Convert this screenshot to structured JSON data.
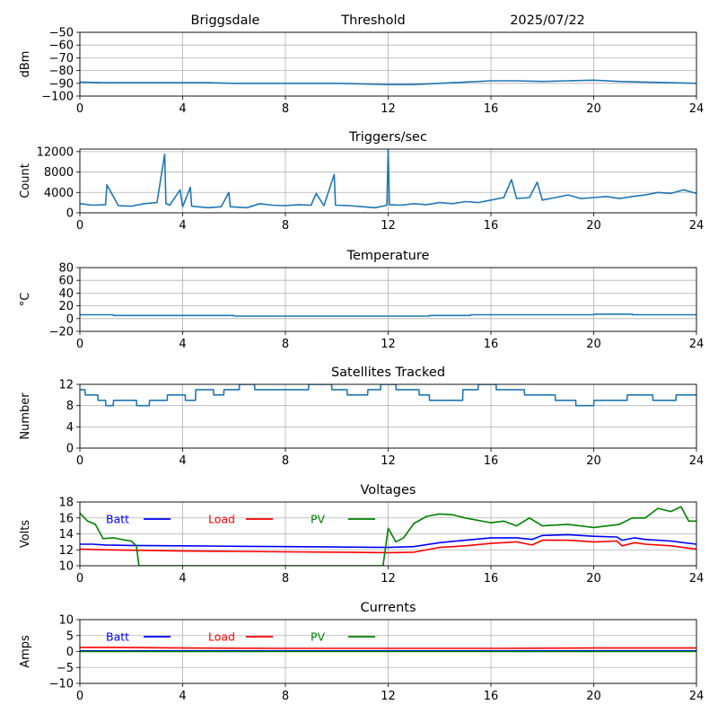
{
  "header": {
    "station": "Briggsdale",
    "mode": "Threshold",
    "date": "2025/07/22"
  },
  "chart_data": [
    {
      "id": "signal",
      "type": "line",
      "title": "",
      "xlabel": "",
      "ylabel": "dBm",
      "xlim": [
        0,
        24
      ],
      "ylim": [
        -100,
        -50
      ],
      "xticks": [
        "0",
        "4",
        "8",
        "12",
        "16",
        "20",
        "24"
      ],
      "yticks": [
        "−100",
        "−90",
        "−80",
        "−70",
        "−60",
        "−50"
      ],
      "grid": true,
      "series": [
        {
          "color": "#1f77b4",
          "x": [
            0,
            1,
            2,
            3,
            4,
            5,
            6,
            7,
            8,
            9,
            10,
            11,
            12,
            13,
            14,
            15,
            16,
            17,
            18,
            19,
            20,
            21,
            22,
            23,
            24
          ],
          "y": [
            -89,
            -89.5,
            -89.5,
            -89.5,
            -89.5,
            -89.5,
            -90,
            -90,
            -90,
            -90,
            -90,
            -90.5,
            -91,
            -91,
            -90,
            -89,
            -88,
            -88,
            -88.5,
            -88,
            -87.5,
            -88.5,
            -89,
            -89.5,
            -90
          ]
        }
      ]
    },
    {
      "id": "triggers",
      "type": "line",
      "title": "Triggers/sec",
      "xlabel": "",
      "ylabel": "Count",
      "xlim": [
        0,
        24
      ],
      "ylim": [
        0,
        12500
      ],
      "xticks": [
        "0",
        "4",
        "8",
        "12",
        "16",
        "20",
        "24"
      ],
      "yticks": [
        "0",
        "4000",
        "8000",
        "12000"
      ],
      "grid": true,
      "series": [
        {
          "color": "#1f77b4",
          "x": [
            0,
            0.5,
            1,
            1.05,
            1.5,
            2,
            2.5,
            3,
            3.3,
            3.35,
            3.5,
            3.9,
            4,
            4.3,
            4.35,
            5,
            5.5,
            5.8,
            5.85,
            6.5,
            7,
            7.5,
            8,
            8.5,
            9,
            9.2,
            9.5,
            9.9,
            9.95,
            10.5,
            11,
            11.5,
            11.95,
            12,
            12.05,
            12.5,
            13,
            13.5,
            14,
            14.5,
            15,
            15.5,
            16,
            16.5,
            16.8,
            17,
            17.5,
            17.8,
            18,
            18.5,
            19,
            19.5,
            20,
            20.5,
            21,
            21.5,
            22,
            22.5,
            23,
            23.5,
            24
          ],
          "y": [
            1800,
            1500,
            1600,
            5500,
            1400,
            1300,
            1800,
            2000,
            11500,
            1800,
            1500,
            4500,
            1200,
            5000,
            1300,
            1000,
            1200,
            4000,
            1200,
            1000,
            1800,
            1500,
            1400,
            1600,
            1500,
            3800,
            1400,
            7500,
            1500,
            1400,
            1200,
            1000,
            1500,
            12500,
            1600,
            1500,
            1800,
            1600,
            2000,
            1800,
            2200,
            2000,
            2500,
            3000,
            6500,
            2800,
            3000,
            6000,
            2500,
            3000,
            3500,
            2800,
            3000,
            3200,
            2800,
            3200,
            3500,
            4000,
            3800,
            4500,
            3800
          ]
        }
      ]
    },
    {
      "id": "temperature",
      "type": "line",
      "title": "Temperature",
      "xlabel": "",
      "ylabel": "°C",
      "xlim": [
        0,
        24
      ],
      "ylim": [
        -20,
        80
      ],
      "xticks": [
        "0",
        "4",
        "8",
        "12",
        "16",
        "20",
        "24"
      ],
      "yticks": [
        "−20",
        "0",
        "20",
        "40",
        "60",
        "80"
      ],
      "grid": true,
      "series": [
        {
          "color": "#1f77b4",
          "x": [
            0,
            1.3,
            1.31,
            6,
            6.01,
            13.6,
            13.61,
            15.2,
            15.21,
            20,
            20.01,
            21.5,
            21.51,
            24
          ],
          "y": [
            6,
            6,
            5,
            5,
            4,
            4,
            5,
            5,
            6,
            6,
            7,
            7,
            6,
            6
          ]
        }
      ]
    },
    {
      "id": "satellites",
      "type": "line",
      "title": "Satellites Tracked",
      "xlabel": "",
      "ylabel": "Number",
      "xlim": [
        0,
        24
      ],
      "ylim": [
        0,
        12
      ],
      "xticks": [
        "0",
        "4",
        "8",
        "12",
        "16",
        "20",
        "24"
      ],
      "yticks": [
        "0",
        "4",
        "8",
        "12"
      ],
      "grid": true,
      "series": [
        {
          "color": "#1f77b4",
          "x": [
            0,
            0.2,
            0.21,
            0.7,
            0.71,
            1,
            1.01,
            1.3,
            1.31,
            2.2,
            2.21,
            2.7,
            2.71,
            3.4,
            3.41,
            4.1,
            4.11,
            4.5,
            4.51,
            5.2,
            5.21,
            5.6,
            5.61,
            6.2,
            6.21,
            6.8,
            6.81,
            8.9,
            8.91,
            9.8,
            9.81,
            10.4,
            10.41,
            11.2,
            11.21,
            11.7,
            11.71,
            12.3,
            12.31,
            13.2,
            13.21,
            13.6,
            13.61,
            14.9,
            14.91,
            15.5,
            15.51,
            16.2,
            16.21,
            17.3,
            17.31,
            18.5,
            18.51,
            19.3,
            19.31,
            20,
            20.01,
            21.3,
            21.31,
            22.3,
            22.31,
            23.2,
            23.21,
            24
          ],
          "y": [
            11,
            11,
            10,
            10,
            9,
            9,
            8,
            8,
            9,
            9,
            8,
            8,
            9,
            9,
            10,
            10,
            9,
            9,
            11,
            11,
            10,
            10,
            11,
            11,
            12,
            12,
            11,
            11,
            12,
            12,
            11,
            11,
            10,
            10,
            11,
            11,
            12,
            12,
            11,
            11,
            10,
            10,
            9,
            9,
            11,
            11,
            12,
            12,
            11,
            11,
            10,
            10,
            9,
            9,
            8,
            8,
            9,
            9,
            10,
            10,
            9,
            9,
            10,
            10
          ]
        }
      ]
    },
    {
      "id": "voltages",
      "type": "line",
      "title": "Voltages",
      "xlabel": "",
      "ylabel": "Volts",
      "xlim": [
        0,
        24
      ],
      "ylim": [
        10,
        18
      ],
      "xticks": [
        "0",
        "4",
        "8",
        "12",
        "16",
        "20",
        "24"
      ],
      "yticks": [
        "10",
        "12",
        "14",
        "16",
        "18"
      ],
      "grid": true,
      "legend": "top",
      "series": [
        {
          "name": "Batt",
          "color": "#0000ff",
          "x": [
            0,
            0.5,
            1,
            2,
            4,
            6,
            8,
            10,
            12,
            13,
            14,
            15,
            16,
            17,
            17.6,
            18,
            19,
            20,
            20.9,
            21.1,
            21.6,
            22,
            23,
            24
          ],
          "y": [
            12.7,
            12.7,
            12.6,
            12.55,
            12.5,
            12.45,
            12.4,
            12.35,
            12.3,
            12.4,
            12.9,
            13.2,
            13.5,
            13.5,
            13.3,
            13.8,
            13.9,
            13.7,
            13.6,
            13.2,
            13.5,
            13.3,
            13.1,
            12.7
          ]
        },
        {
          "name": "Load",
          "color": "#ff0000",
          "x": [
            0,
            1,
            2,
            4,
            6,
            8,
            10,
            12,
            13,
            14,
            15,
            16,
            17,
            17.6,
            18,
            19,
            20,
            20.9,
            21.1,
            21.6,
            22,
            23,
            24
          ],
          "y": [
            12.1,
            12.0,
            11.95,
            11.85,
            11.8,
            11.75,
            11.7,
            11.65,
            11.7,
            12.3,
            12.5,
            12.8,
            13.0,
            12.6,
            13.2,
            13.2,
            13.0,
            13.1,
            12.5,
            12.9,
            12.7,
            12.5,
            12.1
          ]
        },
        {
          "name": "PV",
          "color": "#008000",
          "x": [
            0,
            0.3,
            0.6,
            0.9,
            1.3,
            1.8,
            2.0,
            2.2,
            2.3,
            11.8,
            12.0,
            12.3,
            12.6,
            13.0,
            13.5,
            14.0,
            14.5,
            15.0,
            16.0,
            16.5,
            17.0,
            17.5,
            18.0,
            18.5,
            19.0,
            20.0,
            21.0,
            21.5,
            22.0,
            22.5,
            23.0,
            23.4,
            23.7,
            24
          ],
          "y": [
            16.6,
            15.6,
            15.2,
            13.4,
            13.5,
            13.2,
            13.1,
            12.5,
            10,
            10,
            14.7,
            13.0,
            13.5,
            15.3,
            16.2,
            16.5,
            16.4,
            16.0,
            15.4,
            15.6,
            15.0,
            16.0,
            15.0,
            15.1,
            15.2,
            14.8,
            15.2,
            16.0,
            16.0,
            17.2,
            16.8,
            17.4,
            15.6,
            15.6
          ]
        }
      ]
    },
    {
      "id": "currents",
      "type": "line",
      "title": "Currents",
      "xlabel": "",
      "ylabel": "Amps",
      "xlim": [
        0,
        24
      ],
      "ylim": [
        -10,
        10
      ],
      "xticks": [
        "0",
        "4",
        "8",
        "12",
        "16",
        "20",
        "24"
      ],
      "yticks": [
        "−10",
        "−5",
        "0",
        "5",
        "10"
      ],
      "grid": true,
      "legend": "top",
      "series": [
        {
          "name": "Batt",
          "color": "#0000ff",
          "x": [
            0,
            24
          ],
          "y": [
            0.2,
            0.2
          ]
        },
        {
          "name": "Load",
          "color": "#ff0000",
          "x": [
            0,
            1,
            4,
            8,
            12,
            16,
            20,
            24
          ],
          "y": [
            1.3,
            1.3,
            1.1,
            1.0,
            1.0,
            1.0,
            1.1,
            1.1
          ]
        },
        {
          "name": "PV",
          "color": "#008000",
          "x": [
            0,
            24
          ],
          "y": [
            0,
            0
          ]
        }
      ]
    }
  ]
}
